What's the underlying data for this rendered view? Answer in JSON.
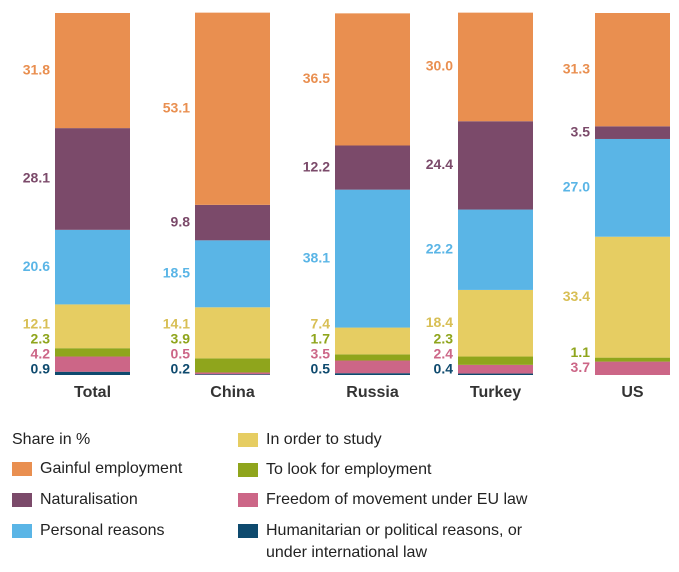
{
  "chart_data": {
    "type": "stacked_bar",
    "categories": [
      "Total",
      "China",
      "Russia",
      "Turkey",
      "US"
    ],
    "ylim": [
      0,
      100
    ],
    "legend_title": "Share in %",
    "series": [
      {
        "name": "Humanitarian or political reasons, or under international law",
        "color": "#0e4a6e",
        "values": [
          0.9,
          0.2,
          0.5,
          0.4,
          null
        ],
        "value_labels": [
          "0.9",
          "0.2",
          "0.5",
          "0.4",
          null
        ]
      },
      {
        "name": "Freedom of movement under EU law",
        "color": "#cc6687",
        "values": [
          4.2,
          0.5,
          3.5,
          2.4,
          3.7
        ],
        "value_labels": [
          "4.2",
          "0.5",
          "3.5",
          "2.4",
          "3.7"
        ]
      },
      {
        "name": "To look for employment",
        "color": "#8fa51c",
        "values": [
          2.3,
          3.9,
          1.7,
          2.3,
          1.1
        ],
        "value_labels": [
          "2.3",
          "3.9",
          "1.7",
          "2.3",
          "1.1"
        ]
      },
      {
        "name": "In order to study",
        "color": "#e6cd62",
        "values": [
          12.1,
          14.1,
          7.4,
          18.4,
          33.4
        ],
        "value_labels": [
          "12.1",
          "14.1",
          "7.4",
          "18.4",
          "33.4"
        ]
      },
      {
        "name": "Personal reasons",
        "color": "#5ab5e6",
        "values": [
          20.6,
          18.5,
          38.1,
          22.2,
          27.0
        ],
        "value_labels": [
          "20.6",
          "18.5",
          "38.1",
          "22.2",
          "27.0"
        ]
      },
      {
        "name": "Naturalisation",
        "color": "#7b4a6a",
        "values": [
          28.1,
          9.8,
          12.2,
          24.4,
          3.5
        ],
        "value_labels": [
          "28.1",
          "9.8",
          "12.2",
          "24.4",
          "3.5"
        ]
      },
      {
        "name": "Gainful employment",
        "color": "#e98f50",
        "values": [
          31.8,
          53.1,
          36.5,
          30.0,
          31.3
        ],
        "value_labels": [
          "31.8",
          "53.1",
          "36.5",
          "30.0",
          "31.3"
        ]
      }
    ]
  }
}
